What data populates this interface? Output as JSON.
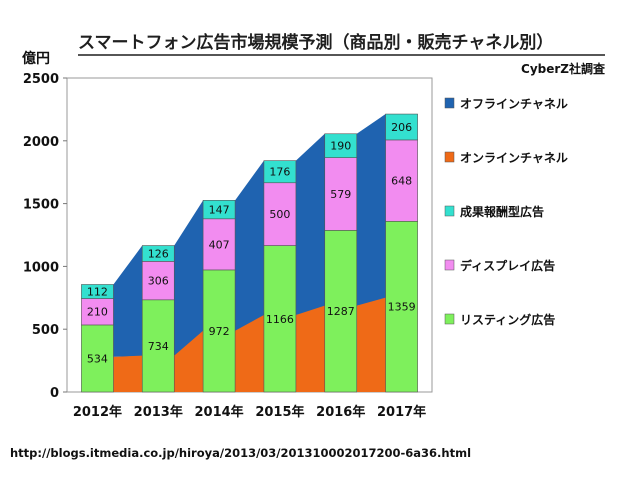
{
  "chart_data": {
    "type": "area",
    "title": "スマートフォン広告市場規模予測（商品別・販売チャネル別）",
    "unit_label": "億円",
    "source": "CyberZ社調査",
    "categories": [
      "2012年",
      "2013年",
      "2014年",
      "2015年",
      "2016年",
      "2017年"
    ],
    "ylim": [
      0,
      2500
    ],
    "yticks": [
      "0",
      "500",
      "1000",
      "1500",
      "2000",
      "2500"
    ],
    "grid": false,
    "legend_position": "right",
    "area_series": [
      {
        "name": "オフラインチャネル",
        "color": "#1f63b0",
        "values": [
          576,
          876,
          1038,
          1229,
          1368,
          1462
        ]
      },
      {
        "name": "オンラインチャネル",
        "color": "#ef6a17",
        "values": [
          280,
          290,
          488,
          613,
          688,
          751
        ]
      }
    ],
    "bar_series": [
      {
        "name": "成果報酬型広告",
        "color": "#33e0cf",
        "values": [
          112,
          126,
          147,
          176,
          190,
          206
        ],
        "labels": [
          "112",
          "126",
          "147",
          "176",
          "190",
          "206"
        ]
      },
      {
        "name": "ディスプレイ広告",
        "color": "#f28cf0",
        "values": [
          210,
          306,
          407,
          500,
          579,
          648
        ],
        "labels": [
          "210",
          "306",
          "407",
          "500",
          "579",
          "648"
        ]
      },
      {
        "name": "リスティング広告",
        "color": "#7ef05c",
        "values": [
          534,
          734,
          972,
          1166,
          1287,
          1359
        ],
        "labels": [
          "534",
          "734",
          "972",
          "1166",
          "1287",
          "1359"
        ]
      }
    ],
    "legend": [
      {
        "name": "オフラインチャネル",
        "color": "#1f63b0"
      },
      {
        "name": "オンラインチャネル",
        "color": "#ef6a17"
      },
      {
        "name": "成果報酬型広告",
        "color": "#33e0cf"
      },
      {
        "name": "ディスプレイ広告",
        "color": "#f28cf0"
      },
      {
        "name": "リスティング広告",
        "color": "#7ef05c"
      }
    ]
  },
  "footer": {
    "url": "http://blogs.itmedia.co.jp/hiroya/2013/03/201310002017200-6a36.html"
  }
}
